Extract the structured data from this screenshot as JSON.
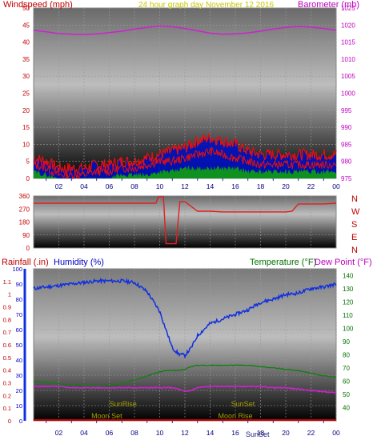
{
  "header": {
    "windspeed_label": "Windspeed (mph)",
    "title": "24 hour graph day   November 12 2016",
    "barometer_label": "Barometer (mb)"
  },
  "colors": {
    "wind_avg": "#e01010",
    "wind_gust_fill": "#0010c0",
    "wind_low": "#10a010",
    "barometer": "#d020d0",
    "direction": "#e02020",
    "humidity": "#1030e0",
    "temperature": "#108010",
    "dewpoint": "#d020d0",
    "rain_axis": "#c00000",
    "sun_moon": "#a0a000"
  },
  "x_ticks": [
    "02",
    "04",
    "06",
    "08",
    "10",
    "12",
    "14",
    "16",
    "18",
    "20",
    "22",
    "00"
  ],
  "chart_data": [
    {
      "type": "line",
      "title": "24 hour graph day   November 12 2016",
      "xlabel": "",
      "ylabel": "Windspeed (mph)",
      "ylim": [
        0,
        50
      ],
      "y_ticks": [
        0,
        5,
        10,
        15,
        20,
        25,
        30,
        35,
        40,
        45,
        50
      ],
      "y2label": "Barometer (mb)",
      "y2lim": [
        975,
        1025
      ],
      "y2_ticks": [
        975,
        980,
        985,
        990,
        995,
        1000,
        1005,
        1010,
        1015,
        1020,
        1025
      ],
      "x": [
        0,
        1,
        2,
        3,
        4,
        5,
        6,
        7,
        8,
        9,
        10,
        11,
        12,
        13,
        14,
        15,
        16,
        17,
        18,
        19,
        20,
        21,
        22,
        23,
        24
      ],
      "series": [
        {
          "name": "Barometer (mb)",
          "axis": "y2",
          "values": [
            1018.5,
            1018,
            1017.5,
            1017.3,
            1017.2,
            1017.4,
            1017.8,
            1018.2,
            1018.8,
            1019.3,
            1019.8,
            1019.5,
            1019,
            1018.3,
            1017.6,
            1017.3,
            1017.4,
            1017.7,
            1018.2,
            1018.8,
            1019.3,
            1019.6,
            1019.4,
            1019,
            1018.5
          ]
        },
        {
          "name": "Wind gust",
          "axis": "y",
          "values": [
            6,
            5,
            3,
            3,
            3,
            4,
            4,
            5,
            5,
            6,
            7,
            8,
            9,
            11,
            12,
            11,
            10,
            8,
            7,
            7,
            7,
            7,
            7,
            7,
            7
          ]
        },
        {
          "name": "Wind average",
          "axis": "y",
          "values": [
            4,
            3,
            1,
            1,
            1,
            2,
            2,
            3,
            3,
            4,
            5,
            5,
            6,
            7,
            8,
            7,
            6,
            5,
            4,
            4,
            4,
            4,
            4,
            4,
            4
          ]
        },
        {
          "name": "Wind low",
          "axis": "y",
          "values": [
            2,
            1,
            0,
            0,
            0,
            0,
            0,
            1,
            1,
            1,
            2,
            2,
            3,
            3,
            3,
            3,
            3,
            2,
            2,
            2,
            2,
            2,
            2,
            2,
            2
          ]
        }
      ]
    },
    {
      "type": "line",
      "ylim": [
        0,
        360
      ],
      "y_ticks": [
        0,
        90,
        180,
        270,
        360
      ],
      "compass_labels": [
        "N",
        "W",
        "S",
        "E",
        "N"
      ],
      "x": [
        0,
        1,
        2,
        3,
        4,
        5,
        6,
        7,
        8,
        9,
        9.7,
        9.9,
        10.3,
        10.5,
        10.9,
        11.1,
        11.3,
        11.6,
        12,
        13,
        14,
        15,
        16,
        17,
        18,
        19,
        20,
        20.5,
        21,
        22,
        23,
        24
      ],
      "series": [
        {
          "name": "Wind direction",
          "values": [
            310,
            310,
            310,
            310,
            310,
            310,
            310,
            310,
            310,
            310,
            310,
            355,
            355,
            30,
            30,
            30,
            30,
            320,
            320,
            255,
            255,
            250,
            250,
            250,
            250,
            250,
            250,
            255,
            305,
            305,
            305,
            310
          ]
        }
      ]
    },
    {
      "type": "line",
      "ylabel": "Rainfall (.in)",
      "ylim": [
        0,
        1.2
      ],
      "y_ticks": [
        0,
        0.1,
        0.2,
        0.3,
        0.4,
        0.5,
        0.6,
        0.7,
        0.8,
        0.9,
        1,
        1.1
      ],
      "humidity_label": "Humidity (%)",
      "humidity_lim": [
        0,
        100
      ],
      "humidity_ticks": [
        0,
        10,
        20,
        30,
        40,
        50,
        60,
        70,
        80,
        90,
        100
      ],
      "temperature_label": "Temperature (°F)",
      "dewpoint_label": "Dew Point (°F)",
      "temp_lim": [
        30,
        145
      ],
      "temp_ticks": [
        40,
        50,
        60,
        70,
        80,
        90,
        100,
        110,
        120,
        130,
        140
      ],
      "x": [
        0,
        1,
        2,
        3,
        4,
        5,
        6,
        7,
        8,
        9,
        10,
        10.5,
        11,
        11.5,
        12,
        12.5,
        13,
        14,
        15,
        16,
        17,
        18,
        19,
        20,
        21,
        22,
        23,
        24
      ],
      "series": [
        {
          "name": "Humidity (%)",
          "axis": "humidity",
          "values": [
            87,
            88,
            89,
            90,
            91,
            92,
            92,
            92,
            91,
            85,
            72,
            60,
            48,
            44,
            43,
            48,
            56,
            64,
            67,
            70,
            73,
            78,
            80,
            83,
            84,
            87,
            88,
            90
          ]
        },
        {
          "name": "Temperature (°F)",
          "axis": "temp",
          "values": [
            60,
            59,
            58,
            57,
            57,
            56,
            57,
            58,
            61,
            64,
            67,
            68,
            68,
            68,
            69,
            71,
            72,
            72,
            72,
            72,
            72,
            71,
            70,
            69,
            68,
            66,
            64,
            63
          ]
        },
        {
          "name": "Dew Point (°F)",
          "axis": "temp",
          "values": [
            56,
            56,
            56,
            55,
            55,
            55,
            55,
            55,
            55,
            55,
            55,
            55,
            55,
            54,
            52,
            53,
            55,
            56,
            56,
            56,
            56,
            56,
            55,
            55,
            54,
            53,
            52,
            51
          ]
        }
      ],
      "annotations": [
        {
          "text": "SunRise",
          "x": 7.1
        },
        {
          "text": "SunSet",
          "x": 16.6
        },
        {
          "text": "Moon Set",
          "x": 5.8
        },
        {
          "text": "Moon Rise",
          "x": 16.0
        }
      ],
      "bottom_label": "SunSet"
    }
  ]
}
